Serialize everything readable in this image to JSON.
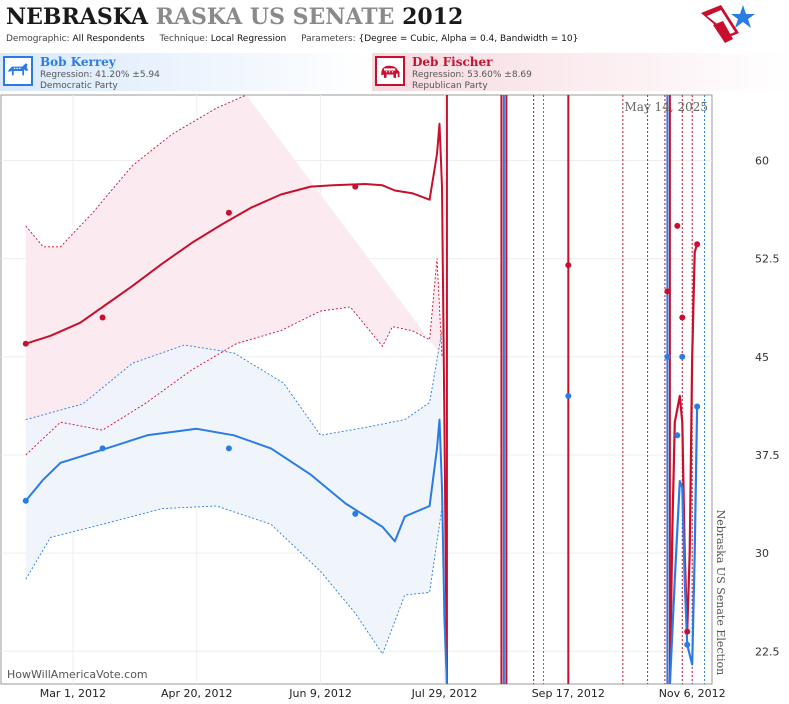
{
  "header": {
    "title_state": "NEBRASKA",
    "title_rest": "RASKA US SENATE",
    "title_year": "2012",
    "demographic_label": "Demographic:",
    "demographic_value": "All Respondents",
    "technique_label": "Technique:",
    "technique_value": "Local Regression",
    "parameters_label": "Parameters:",
    "parameters_value": "{Degree = Cubic, Alpha = 0.4, Bandwidth = 10}",
    "logo_icon": "flag-star-logo-icon"
  },
  "candidates": {
    "dem": {
      "name": "Bob Kerrey",
      "regression": "Regression: 41.20% ±5.94",
      "party": "Democratic Party",
      "icon": "donkey-icon",
      "color": "#2a7be4"
    },
    "rep": {
      "name": "Deb Fischer",
      "regression": "Regression: 53.60% ±8.69",
      "party": "Republican Party",
      "icon": "elephant-icon",
      "color": "#c8102e"
    }
  },
  "chart_data": {
    "type": "line",
    "date_label": "May 14, 2025",
    "side_label": "Nebraska US Senate Election",
    "watermark": "HowWillAmericaVote.com",
    "ylim": [
      20,
      65
    ],
    "y_ticks": [
      "60",
      "52.5",
      "45",
      "37.5",
      "30",
      "22.5"
    ],
    "y_tick_values": [
      60,
      52.5,
      45,
      37.5,
      30,
      22.5
    ],
    "x_range": [
      "2012-02-01",
      "2012-11-14"
    ],
    "x_ticks": [
      {
        "label": "Mar 1, 2012",
        "date": "2012-03-01"
      },
      {
        "label": "Apr 20, 2012",
        "date": "2012-04-20"
      },
      {
        "label": "Jun 9, 2012",
        "date": "2012-06-09"
      },
      {
        "label": "Jul 29, 2012",
        "date": "2012-07-29"
      },
      {
        "label": "Sep 17, 2012",
        "date": "2012-09-17"
      },
      {
        "label": "Nov 6, 2012",
        "date": "2012-11-06"
      }
    ],
    "grid": true,
    "series": [
      {
        "name": "Deb Fischer",
        "color": "#c8102e",
        "band_color": "#fbe9ee",
        "line": [
          [
            "2012-02-11",
            46.0
          ],
          [
            "2012-02-21",
            46.6
          ],
          [
            "2012-03-04",
            47.6
          ],
          [
            "2012-03-13",
            48.8
          ],
          [
            "2012-03-25",
            50.4
          ],
          [
            "2012-04-06",
            52.1
          ],
          [
            "2012-04-18",
            53.7
          ],
          [
            "2012-04-30",
            55.1
          ],
          [
            "2012-05-12",
            56.4
          ],
          [
            "2012-05-24",
            57.4
          ],
          [
            "2012-06-05",
            58.0
          ],
          [
            "2012-06-14",
            58.1
          ],
          [
            "2012-06-27",
            58.2
          ],
          [
            "2012-07-04",
            58.1
          ],
          [
            "2012-07-09",
            57.7
          ],
          [
            "2012-07-16",
            57.5
          ],
          [
            "2012-07-23",
            57.0
          ],
          [
            "2012-07-26",
            60.5
          ],
          [
            "2012-07-27",
            62.8
          ],
          [
            "2012-07-28",
            58.0
          ],
          [
            "2012-07-29",
            40.0
          ],
          [
            "2012-07-30",
            20.0
          ]
        ],
        "upper": [
          [
            "2012-02-11",
            55.0
          ],
          [
            "2012-02-18",
            53.4
          ],
          [
            "2012-02-25",
            53.4
          ],
          [
            "2012-03-09",
            56.0
          ],
          [
            "2012-03-25",
            59.6
          ],
          [
            "2012-04-10",
            62.0
          ],
          [
            "2012-04-28",
            64.0
          ],
          [
            "2012-05-10",
            65.0
          ]
        ],
        "lower": [
          [
            "2012-02-11",
            37.5
          ],
          [
            "2012-02-25",
            40.0
          ],
          [
            "2012-03-13",
            39.4
          ],
          [
            "2012-03-30",
            41.4
          ],
          [
            "2012-04-18",
            44.0
          ],
          [
            "2012-05-06",
            46.0
          ],
          [
            "2012-05-24",
            47.0
          ],
          [
            "2012-06-09",
            48.5
          ],
          [
            "2012-06-21",
            48.8
          ],
          [
            "2012-07-04",
            45.8
          ],
          [
            "2012-07-08",
            47.3
          ],
          [
            "2012-07-16",
            47.0
          ],
          [
            "2012-07-23",
            46.3
          ],
          [
            "2012-07-26",
            52.5
          ],
          [
            "2012-07-28",
            45.0
          ]
        ],
        "points": [
          [
            "2012-02-11",
            46.0
          ],
          [
            "2012-03-13",
            48.0
          ],
          [
            "2012-05-03",
            56.0
          ],
          [
            "2012-06-23",
            58.0
          ],
          [
            "2012-09-17",
            52.0
          ],
          [
            "2012-10-27",
            50.0
          ],
          [
            "2012-10-31",
            55.0
          ],
          [
            "2012-11-02",
            48.0
          ],
          [
            "2012-11-04",
            24.0
          ],
          [
            "2012-11-08",
            53.6
          ]
        ]
      },
      {
        "name": "Bob Kerrey",
        "color": "#2a7be4",
        "band_color": "#eef4fc",
        "line": [
          [
            "2012-02-11",
            34.0
          ],
          [
            "2012-02-18",
            35.6
          ],
          [
            "2012-02-25",
            36.9
          ],
          [
            "2012-03-13",
            37.9
          ],
          [
            "2012-03-31",
            39.0
          ],
          [
            "2012-04-20",
            39.5
          ],
          [
            "2012-05-05",
            39.0
          ],
          [
            "2012-05-20",
            38.0
          ],
          [
            "2012-06-05",
            36.0
          ],
          [
            "2012-06-19",
            33.8
          ],
          [
            "2012-07-04",
            32.0
          ],
          [
            "2012-07-09",
            30.9
          ],
          [
            "2012-07-13",
            32.8
          ],
          [
            "2012-07-23",
            33.6
          ],
          [
            "2012-07-26",
            38.0
          ],
          [
            "2012-07-27",
            40.2
          ],
          [
            "2012-07-28",
            35.0
          ],
          [
            "2012-07-29",
            25.0
          ],
          [
            "2012-07-30",
            20.0
          ]
        ],
        "upper": [
          [
            "2012-02-11",
            40.2
          ],
          [
            "2012-03-05",
            41.4
          ],
          [
            "2012-03-25",
            44.5
          ],
          [
            "2012-04-15",
            45.9
          ],
          [
            "2012-05-05",
            45.3
          ],
          [
            "2012-05-25",
            43.0
          ],
          [
            "2012-06-09",
            39.0
          ],
          [
            "2012-06-27",
            39.6
          ],
          [
            "2012-07-13",
            40.2
          ],
          [
            "2012-07-23",
            41.5
          ],
          [
            "2012-07-28",
            47.0
          ]
        ],
        "lower": [
          [
            "2012-02-11",
            28.0
          ],
          [
            "2012-02-21",
            31.2
          ],
          [
            "2012-03-13",
            32.2
          ],
          [
            "2012-04-06",
            33.4
          ],
          [
            "2012-04-28",
            33.6
          ],
          [
            "2012-05-20",
            32.2
          ],
          [
            "2012-06-09",
            28.6
          ],
          [
            "2012-06-23",
            25.4
          ],
          [
            "2012-07-04",
            22.3
          ],
          [
            "2012-07-13",
            26.8
          ],
          [
            "2012-07-23",
            27.0
          ],
          [
            "2012-07-28",
            33.5
          ]
        ],
        "points": [
          [
            "2012-02-11",
            34.0
          ],
          [
            "2012-03-13",
            38.0
          ],
          [
            "2012-05-03",
            38.0
          ],
          [
            "2012-06-23",
            33.0
          ],
          [
            "2012-09-17",
            42.0
          ],
          [
            "2012-10-27",
            45.0
          ],
          [
            "2012-10-31",
            39.0
          ],
          [
            "2012-11-02",
            45.0
          ],
          [
            "2012-11-04",
            23.0
          ],
          [
            "2012-11-08",
            41.2
          ]
        ]
      }
    ],
    "vlines": [
      {
        "date": "2012-07-30",
        "color": "#c8102e",
        "style": "solid"
      },
      {
        "date": "2012-08-21",
        "color": "#c8102e",
        "style": "solid"
      },
      {
        "date": "2012-08-22",
        "color": "#2a7be4",
        "style": "solid"
      },
      {
        "date": "2012-08-23",
        "color": "#c8102e",
        "style": "solid"
      },
      {
        "date": "2012-09-03",
        "color": "#c8102e",
        "style": "dotted"
      },
      {
        "date": "2012-09-07",
        "color": "#2a7be4",
        "style": "dotted"
      },
      {
        "date": "2012-09-17",
        "color": "#c8102e",
        "style": "solid"
      },
      {
        "date": "2012-10-09",
        "color": "#c8102e",
        "style": "dotted"
      },
      {
        "date": "2012-10-19",
        "color": "#c8102e",
        "style": "dotted"
      },
      {
        "date": "2012-10-26",
        "color": "#c8102e",
        "style": "dotted"
      },
      {
        "date": "2012-10-27",
        "color": "#2a7be4",
        "style": "solid"
      },
      {
        "date": "2012-10-28",
        "color": "#c8102e",
        "style": "solid"
      },
      {
        "date": "2012-11-02",
        "color": "#c8102e",
        "style": "dotted"
      },
      {
        "date": "2012-11-06",
        "color": "#c8102e",
        "style": "dotted"
      },
      {
        "date": "2012-11-11",
        "color": "#2a7be4",
        "style": "dotted"
      }
    ],
    "election_wiggles": [
      {
        "color": "#c8102e",
        "path": [
          [
            "2012-10-28",
            20.0
          ],
          [
            "2012-10-29",
            32.0
          ],
          [
            "2012-10-30",
            40.0
          ],
          [
            "2012-11-01",
            42.0
          ],
          [
            "2012-11-02",
            40.0
          ],
          [
            "2012-11-03",
            30.0
          ],
          [
            "2012-11-04",
            24.0
          ],
          [
            "2012-11-05",
            30.0
          ],
          [
            "2012-11-06",
            45.0
          ],
          [
            "2012-11-07",
            53.0
          ],
          [
            "2012-11-08",
            53.6
          ]
        ]
      },
      {
        "color": "#2a7be4",
        "path": [
          [
            "2012-10-28",
            20.0
          ],
          [
            "2012-10-30",
            28.0
          ],
          [
            "2012-11-01",
            35.5
          ],
          [
            "2012-11-02",
            35.0
          ],
          [
            "2012-11-03",
            28.0
          ],
          [
            "2012-11-04",
            23.0
          ],
          [
            "2012-11-06",
            21.5
          ],
          [
            "2012-11-07",
            30.0
          ],
          [
            "2012-11-08",
            41.2
          ]
        ]
      }
    ]
  }
}
